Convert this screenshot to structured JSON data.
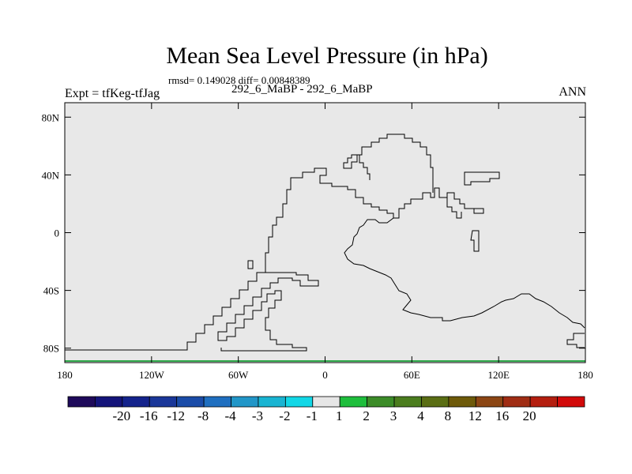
{
  "header": {
    "title": "Mean Sea Level Pressure (in hPa)",
    "stats": "rmsd= 0.149028 diff= 0.00848389",
    "experiment": "Expt = tfKeg-tfJag",
    "subtitle": "292_6_MaBP - 292_6_MaBP",
    "season": "ANN"
  },
  "map": {
    "background_color": "#e8e8e8",
    "coastline_color": "#000000",
    "lon_range": [
      -180,
      180
    ],
    "lat_range": [
      -90,
      90
    ],
    "lon_ticks": [
      {
        "value": -180,
        "label": "180"
      },
      {
        "value": -120,
        "label": "120W"
      },
      {
        "value": -60,
        "label": "60W"
      },
      {
        "value": 0,
        "label": "0"
      },
      {
        "value": 60,
        "label": "60E"
      },
      {
        "value": 120,
        "label": "120E"
      },
      {
        "value": 180,
        "label": "180"
      }
    ],
    "lat_ticks": [
      {
        "value": 80,
        "label": "80N"
      },
      {
        "value": 40,
        "label": "40N"
      },
      {
        "value": 0,
        "label": "0"
      },
      {
        "value": -40,
        "label": "40S"
      },
      {
        "value": -80,
        "label": "80S"
      }
    ]
  },
  "colorbar": {
    "colors": [
      "#1e0a5a",
      "#14147a",
      "#14238c",
      "#1a3799",
      "#1a4ca8",
      "#1f6fc0",
      "#2196c8",
      "#19b4d2",
      "#12d7e6",
      "#e6e6e6",
      "#1ebe3c",
      "#3c8c28",
      "#4b7d1e",
      "#5a6e14",
      "#6e5a0a",
      "#8c4614",
      "#a02d14",
      "#b41e0f",
      "#d20a0a"
    ],
    "labels": [
      "-20",
      "-16",
      "-12",
      "-8",
      "-4",
      "-3",
      "-2",
      "-1",
      "1",
      "2",
      "3",
      "4",
      "8",
      "12",
      "16",
      "20"
    ]
  }
}
